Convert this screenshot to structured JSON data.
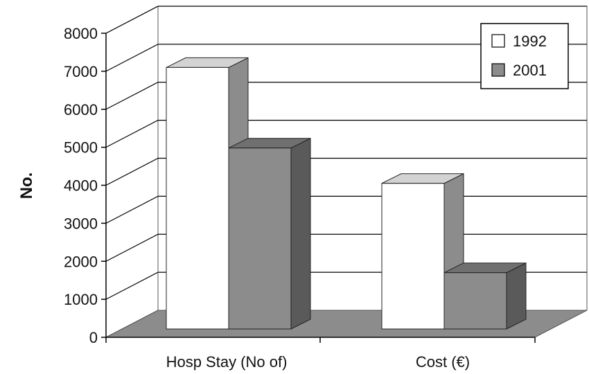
{
  "chart_data": {
    "type": "bar",
    "title": "",
    "xlabel": "",
    "ylabel": "No.",
    "ylim": [
      0,
      8000
    ],
    "yticks": [
      "0",
      "1000",
      "2000",
      "3000",
      "4000",
      "5000",
      "6000",
      "7000",
      "8000"
    ],
    "categories": [
      "Hosp Stay (No of)",
      "Cost (€)"
    ],
    "series": [
      {
        "name": "1992",
        "values": [
          7100,
          4050
        ],
        "color": "#ffffff"
      },
      {
        "name": "2001",
        "values": [
          4980,
          1700
        ],
        "color": "#8c8c8c"
      }
    ],
    "grid": true,
    "legend_position": "top-right",
    "style": "3d-clustered-column",
    "colors": {
      "floor": "#8c8c8c",
      "gridline": "#000000",
      "bar_1992_front": "#ffffff",
      "bar_1992_top": "#d3d3d3",
      "bar_1992_side": "#8c8c8c",
      "bar_2001_front": "#8c8c8c",
      "bar_2001_top": "#707070",
      "bar_2001_side": "#5a5a5a"
    }
  }
}
